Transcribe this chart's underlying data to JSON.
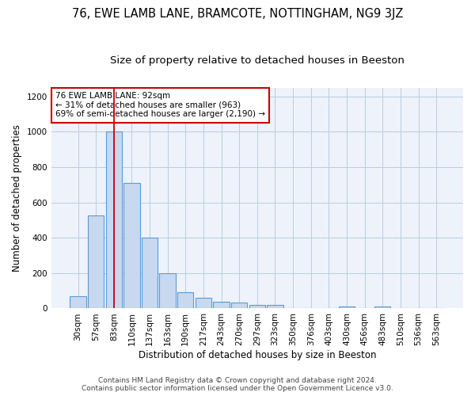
{
  "title": "76, EWE LAMB LANE, BRAMCOTE, NOTTINGHAM, NG9 3JZ",
  "subtitle": "Size of property relative to detached houses in Beeston",
  "xlabel": "Distribution of detached houses by size in Beeston",
  "ylabel": "Number of detached properties",
  "categories": [
    "30sqm",
    "57sqm",
    "83sqm",
    "110sqm",
    "137sqm",
    "163sqm",
    "190sqm",
    "217sqm",
    "243sqm",
    "270sqm",
    "297sqm",
    "323sqm",
    "350sqm",
    "376sqm",
    "403sqm",
    "430sqm",
    "456sqm",
    "483sqm",
    "510sqm",
    "536sqm",
    "563sqm"
  ],
  "values": [
    70,
    525,
    1000,
    710,
    400,
    200,
    90,
    60,
    40,
    33,
    20,
    20,
    0,
    0,
    0,
    10,
    0,
    10,
    0,
    0,
    0
  ],
  "bar_color": "#c8d8ef",
  "bar_edge_color": "#5b9bd5",
  "grid_color": "#b8cde0",
  "background_color": "#eef2fa",
  "vline_x_index": 2,
  "vline_color": "#cc0000",
  "annotation_text": "76 EWE LAMB LANE: 92sqm\n← 31% of detached houses are smaller (963)\n69% of semi-detached houses are larger (2,190) →",
  "annotation_box_color": "white",
  "annotation_box_edge": "#cc0000",
  "footer_line1": "Contains HM Land Registry data © Crown copyright and database right 2024.",
  "footer_line2": "Contains public sector information licensed under the Open Government Licence v3.0.",
  "ylim": [
    0,
    1250
  ],
  "yticks": [
    0,
    200,
    400,
    600,
    800,
    1000,
    1200
  ],
  "title_fontsize": 10.5,
  "subtitle_fontsize": 9.5,
  "xlabel_fontsize": 8.5,
  "ylabel_fontsize": 8.5,
  "tick_fontsize": 7.5,
  "annotation_fontsize": 7.5,
  "footer_fontsize": 6.5
}
